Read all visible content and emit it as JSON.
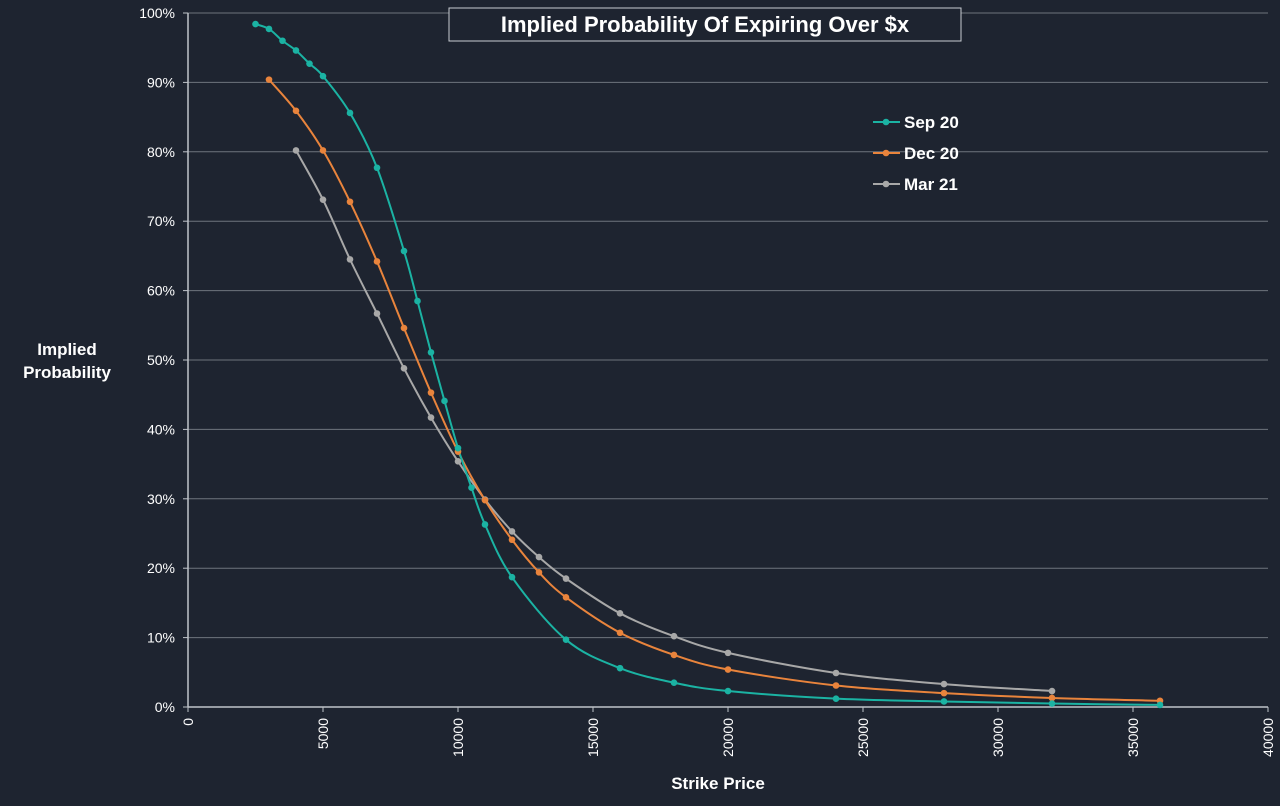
{
  "chart_data": {
    "type": "line",
    "title": "Implied Probability Of Expiring Over $x",
    "xlabel": "Strike Price",
    "ylabel": [
      "Implied",
      "Probability"
    ],
    "xlim": [
      0,
      40000
    ],
    "ylim": [
      0,
      100
    ],
    "x_ticks": [
      "0",
      "5000",
      "10000",
      "15000",
      "20000",
      "25000",
      "30000",
      "35000",
      "40000"
    ],
    "y_ticks": [
      "0%",
      "10%",
      "20%",
      "30%",
      "40%",
      "50%",
      "60%",
      "70%",
      "80%",
      "90%",
      "100%"
    ],
    "grid": "horizontal",
    "legend_position": "top-right",
    "series": [
      {
        "name": "Sep 20",
        "color": "#1bb3a3",
        "points": [
          [
            2500,
            98.4
          ],
          [
            3000,
            97.7
          ],
          [
            3500,
            96.0
          ],
          [
            4000,
            94.6
          ],
          [
            4500,
            92.7
          ],
          [
            5000,
            90.9
          ],
          [
            6000,
            85.6
          ],
          [
            7000,
            77.7
          ],
          [
            8000,
            65.7
          ],
          [
            8500,
            58.5
          ],
          [
            9000,
            51.1
          ],
          [
            9500,
            44.1
          ],
          [
            10000,
            37.3
          ],
          [
            10500,
            31.6
          ],
          [
            11000,
            26.3
          ],
          [
            12000,
            18.7
          ],
          [
            14000,
            9.7
          ],
          [
            16000,
            5.6
          ],
          [
            18000,
            3.5
          ],
          [
            20000,
            2.3
          ],
          [
            24000,
            1.2
          ],
          [
            28000,
            0.8
          ],
          [
            32000,
            0.5
          ],
          [
            36000,
            0.3
          ]
        ]
      },
      {
        "name": "Dec 20",
        "color": "#e9843c",
        "points": [
          [
            3000,
            90.4
          ],
          [
            4000,
            85.9
          ],
          [
            5000,
            80.2
          ],
          [
            6000,
            72.8
          ],
          [
            7000,
            64.2
          ],
          [
            8000,
            54.6
          ],
          [
            9000,
            45.3
          ],
          [
            10000,
            36.8
          ],
          [
            11000,
            29.8
          ],
          [
            12000,
            24.1
          ],
          [
            13000,
            19.4
          ],
          [
            14000,
            15.8
          ],
          [
            16000,
            10.7
          ],
          [
            18000,
            7.5
          ],
          [
            20000,
            5.4
          ],
          [
            24000,
            3.1
          ],
          [
            28000,
            2.0
          ],
          [
            32000,
            1.3
          ],
          [
            36000,
            0.9
          ]
        ]
      },
      {
        "name": "Mar 21",
        "color": "#a8a8a8",
        "points": [
          [
            4000,
            80.2
          ],
          [
            5000,
            73.1
          ],
          [
            6000,
            64.5
          ],
          [
            7000,
            56.7
          ],
          [
            8000,
            48.8
          ],
          [
            9000,
            41.7
          ],
          [
            10000,
            35.4
          ],
          [
            11000,
            29.9
          ],
          [
            12000,
            25.3
          ],
          [
            13000,
            21.6
          ],
          [
            14000,
            18.5
          ],
          [
            16000,
            13.5
          ],
          [
            18000,
            10.2
          ],
          [
            20000,
            7.8
          ],
          [
            24000,
            4.9
          ],
          [
            28000,
            3.3
          ],
          [
            32000,
            2.3
          ]
        ]
      }
    ]
  }
}
